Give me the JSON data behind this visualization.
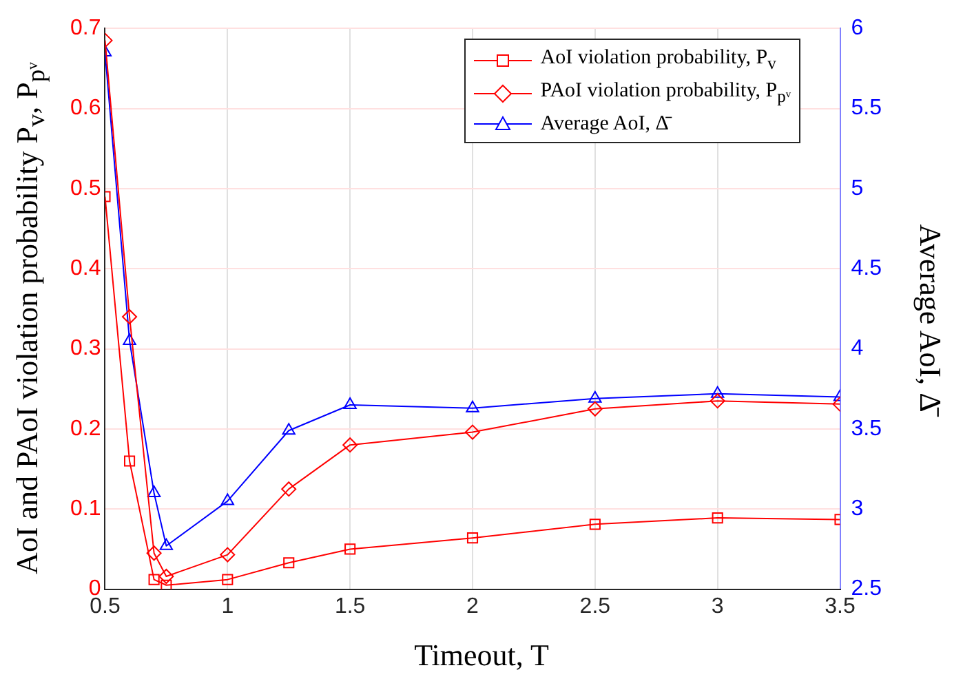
{
  "chart_data": {
    "type": "line",
    "xlabel": "Timeout, T",
    "ylabel": "AoI and PAoI violation probability P$_{v}$, P$_{pᵛ}$",
    "y2label": "Average AoI, Δ̄",
    "x": [
      0.5,
      0.6,
      0.7,
      0.75,
      1,
      1.25,
      1.5,
      2,
      2.5,
      3,
      3.5
    ],
    "series": [
      {
        "name": "AoI violation probability, P$_{v}$",
        "color": "#ff0000",
        "marker": "square",
        "values": [
          0.49,
          0.16,
          0.012,
          0.005,
          0.012,
          0.033,
          0.05,
          0.064,
          0.081,
          0.089,
          0.087
        ]
      },
      {
        "name": "PAoI violation probability, P$_{pᵛ}$",
        "color": "#ff0000",
        "marker": "diamond",
        "values": [
          0.685,
          0.34,
          0.045,
          0.016,
          0.043,
          0.125,
          0.18,
          0.196,
          0.225,
          0.235,
          0.231
        ]
      },
      {
        "name": "Average AoI, Δ̄",
        "color": "#0000ff",
        "marker": "triangle",
        "axis": "y2",
        "values": [
          5.85,
          4.05,
          3.1,
          2.77,
          3.05,
          3.49,
          3.65,
          3.63,
          3.69,
          3.72,
          3.7
        ]
      }
    ],
    "xlim": [
      0.5,
      3.5
    ],
    "xticks": [
      0.5,
      1,
      1.5,
      2,
      2.5,
      3,
      3.5
    ],
    "ylim": [
      0,
      0.7
    ],
    "yticks": [
      0,
      0.1,
      0.2,
      0.3,
      0.4,
      0.5,
      0.6,
      0.7
    ],
    "y2lim": [
      2.5,
      6
    ],
    "y2ticks": [
      2.5,
      3,
      3.5,
      4,
      4.5,
      5,
      5.5,
      6
    ],
    "grid": true,
    "legend": "top right"
  }
}
